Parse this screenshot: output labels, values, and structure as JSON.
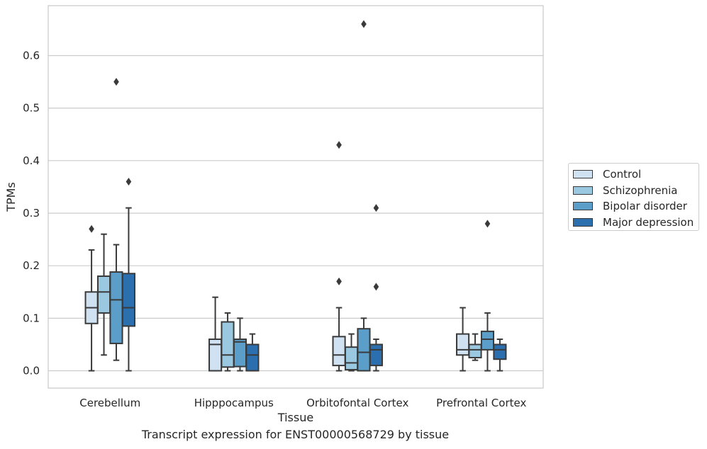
{
  "chart_data": {
    "type": "boxplot",
    "xlabel": "Tissue",
    "ylabel": "TPMs",
    "caption": "Transcript expression for ENST00000568729 by tissue",
    "ylim": [
      -0.033,
      0.695
    ],
    "yticks": [
      0.0,
      0.1,
      0.2,
      0.3,
      0.4,
      0.5,
      0.6
    ],
    "ytick_labels": [
      "0.0",
      "0.1",
      "0.2",
      "0.3",
      "0.4",
      "0.5",
      "0.6"
    ],
    "grid": "horizontal",
    "legend_position": "right",
    "categories": [
      "Cerebellum",
      "Hipppocampus",
      "Orbitofontal Cortex",
      "Prefrontal Cortex"
    ],
    "series": [
      {
        "name": "Control",
        "color": "#d0e2f2",
        "boxes": [
          {
            "whislo": 0.0,
            "q1": 0.09,
            "med": 0.12,
            "q3": 0.15,
            "whishi": 0.23,
            "fliers": [
              0.27
            ]
          },
          {
            "whislo": 0.0,
            "q1": 0.0,
            "med": 0.05,
            "q3": 0.06,
            "whishi": 0.14,
            "fliers": []
          },
          {
            "whislo": 0.0,
            "q1": 0.01,
            "med": 0.03,
            "q3": 0.065,
            "whishi": 0.12,
            "fliers": [
              0.17,
              0.43
            ]
          },
          {
            "whislo": 0.0,
            "q1": 0.03,
            "med": 0.04,
            "q3": 0.07,
            "whishi": 0.12,
            "fliers": []
          }
        ]
      },
      {
        "name": "Schizophrenia",
        "color": "#9ac8e0",
        "boxes": [
          {
            "whislo": 0.03,
            "q1": 0.11,
            "med": 0.15,
            "q3": 0.18,
            "whishi": 0.26,
            "fliers": []
          },
          {
            "whislo": 0.0,
            "q1": 0.007,
            "med": 0.03,
            "q3": 0.093,
            "whishi": 0.11,
            "fliers": []
          },
          {
            "whislo": 0.0,
            "q1": 0.002,
            "med": 0.015,
            "q3": 0.045,
            "whishi": 0.07,
            "fliers": []
          },
          {
            "whislo": 0.02,
            "q1": 0.025,
            "med": 0.04,
            "q3": 0.05,
            "whishi": 0.07,
            "fliers": []
          }
        ]
      },
      {
        "name": "Bipolar disorder",
        "color": "#5a9ec9",
        "boxes": [
          {
            "whislo": 0.02,
            "q1": 0.052,
            "med": 0.135,
            "q3": 0.188,
            "whishi": 0.24,
            "fliers": [
              0.55
            ]
          },
          {
            "whislo": 0.0,
            "q1": 0.008,
            "med": 0.055,
            "q3": 0.06,
            "whishi": 0.1,
            "fliers": []
          },
          {
            "whislo": 0.0,
            "q1": 0.0,
            "med": 0.035,
            "q3": 0.08,
            "whishi": 0.1,
            "fliers": [
              0.66
            ]
          },
          {
            "whislo": 0.0,
            "q1": 0.04,
            "med": 0.06,
            "q3": 0.075,
            "whishi": 0.11,
            "fliers": [
              0.28
            ]
          }
        ]
      },
      {
        "name": "Major depression",
        "color": "#2b6faf",
        "boxes": [
          {
            "whislo": 0.0,
            "q1": 0.085,
            "med": 0.12,
            "q3": 0.185,
            "whishi": 0.31,
            "fliers": [
              0.36
            ]
          },
          {
            "whislo": 0.0,
            "q1": 0.0,
            "med": 0.03,
            "q3": 0.05,
            "whishi": 0.07,
            "fliers": []
          },
          {
            "whislo": 0.0,
            "q1": 0.01,
            "med": 0.04,
            "q3": 0.05,
            "whishi": 0.06,
            "fliers": [
              0.16,
              0.31
            ]
          },
          {
            "whislo": 0.0,
            "q1": 0.022,
            "med": 0.04,
            "q3": 0.05,
            "whishi": 0.06,
            "fliers": []
          }
        ]
      }
    ]
  }
}
